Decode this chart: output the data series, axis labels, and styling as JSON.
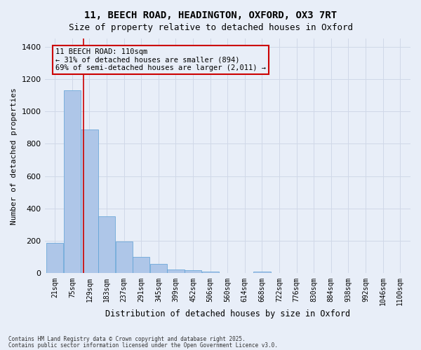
{
  "title1": "11, BEECH ROAD, HEADINGTON, OXFORD, OX3 7RT",
  "title2": "Size of property relative to detached houses in Oxford",
  "xlabel": "Distribution of detached houses by size in Oxford",
  "ylabel": "Number of detached properties",
  "bins": [
    "21sqm",
    "75sqm",
    "129sqm",
    "183sqm",
    "237sqm",
    "291sqm",
    "345sqm",
    "399sqm",
    "452sqm",
    "506sqm",
    "560sqm",
    "614sqm",
    "668sqm",
    "722sqm",
    "776sqm",
    "830sqm",
    "884sqm",
    "938sqm",
    "992sqm",
    "1046sqm",
    "1100sqm"
  ],
  "bin_edges": [
    21,
    75,
    129,
    183,
    237,
    291,
    345,
    399,
    452,
    506,
    560,
    614,
    668,
    722,
    776,
    830,
    884,
    938,
    992,
    1046,
    1100
  ],
  "values": [
    190,
    1130,
    890,
    350,
    195,
    100,
    60,
    22,
    20,
    12,
    0,
    0,
    12,
    0,
    0,
    0,
    0,
    0,
    0,
    0,
    0
  ],
  "bar_color": "#aec6e8",
  "bar_edge_color": "#5a9fd4",
  "grid_color": "#d0d8e8",
  "background_color": "#e8eef8",
  "vline_x": 110,
  "vline_color": "#cc0000",
  "annotation_text": "11 BEECH ROAD: 110sqm\n← 31% of detached houses are smaller (894)\n69% of semi-detached houses are larger (2,011) →",
  "annotation_box_color": "#cc0000",
  "ylim": [
    0,
    1450
  ],
  "yticks": [
    0,
    200,
    400,
    600,
    800,
    1000,
    1200,
    1400
  ],
  "footer1": "Contains HM Land Registry data © Crown copyright and database right 2025.",
  "footer2": "Contains public sector information licensed under the Open Government Licence v3.0."
}
